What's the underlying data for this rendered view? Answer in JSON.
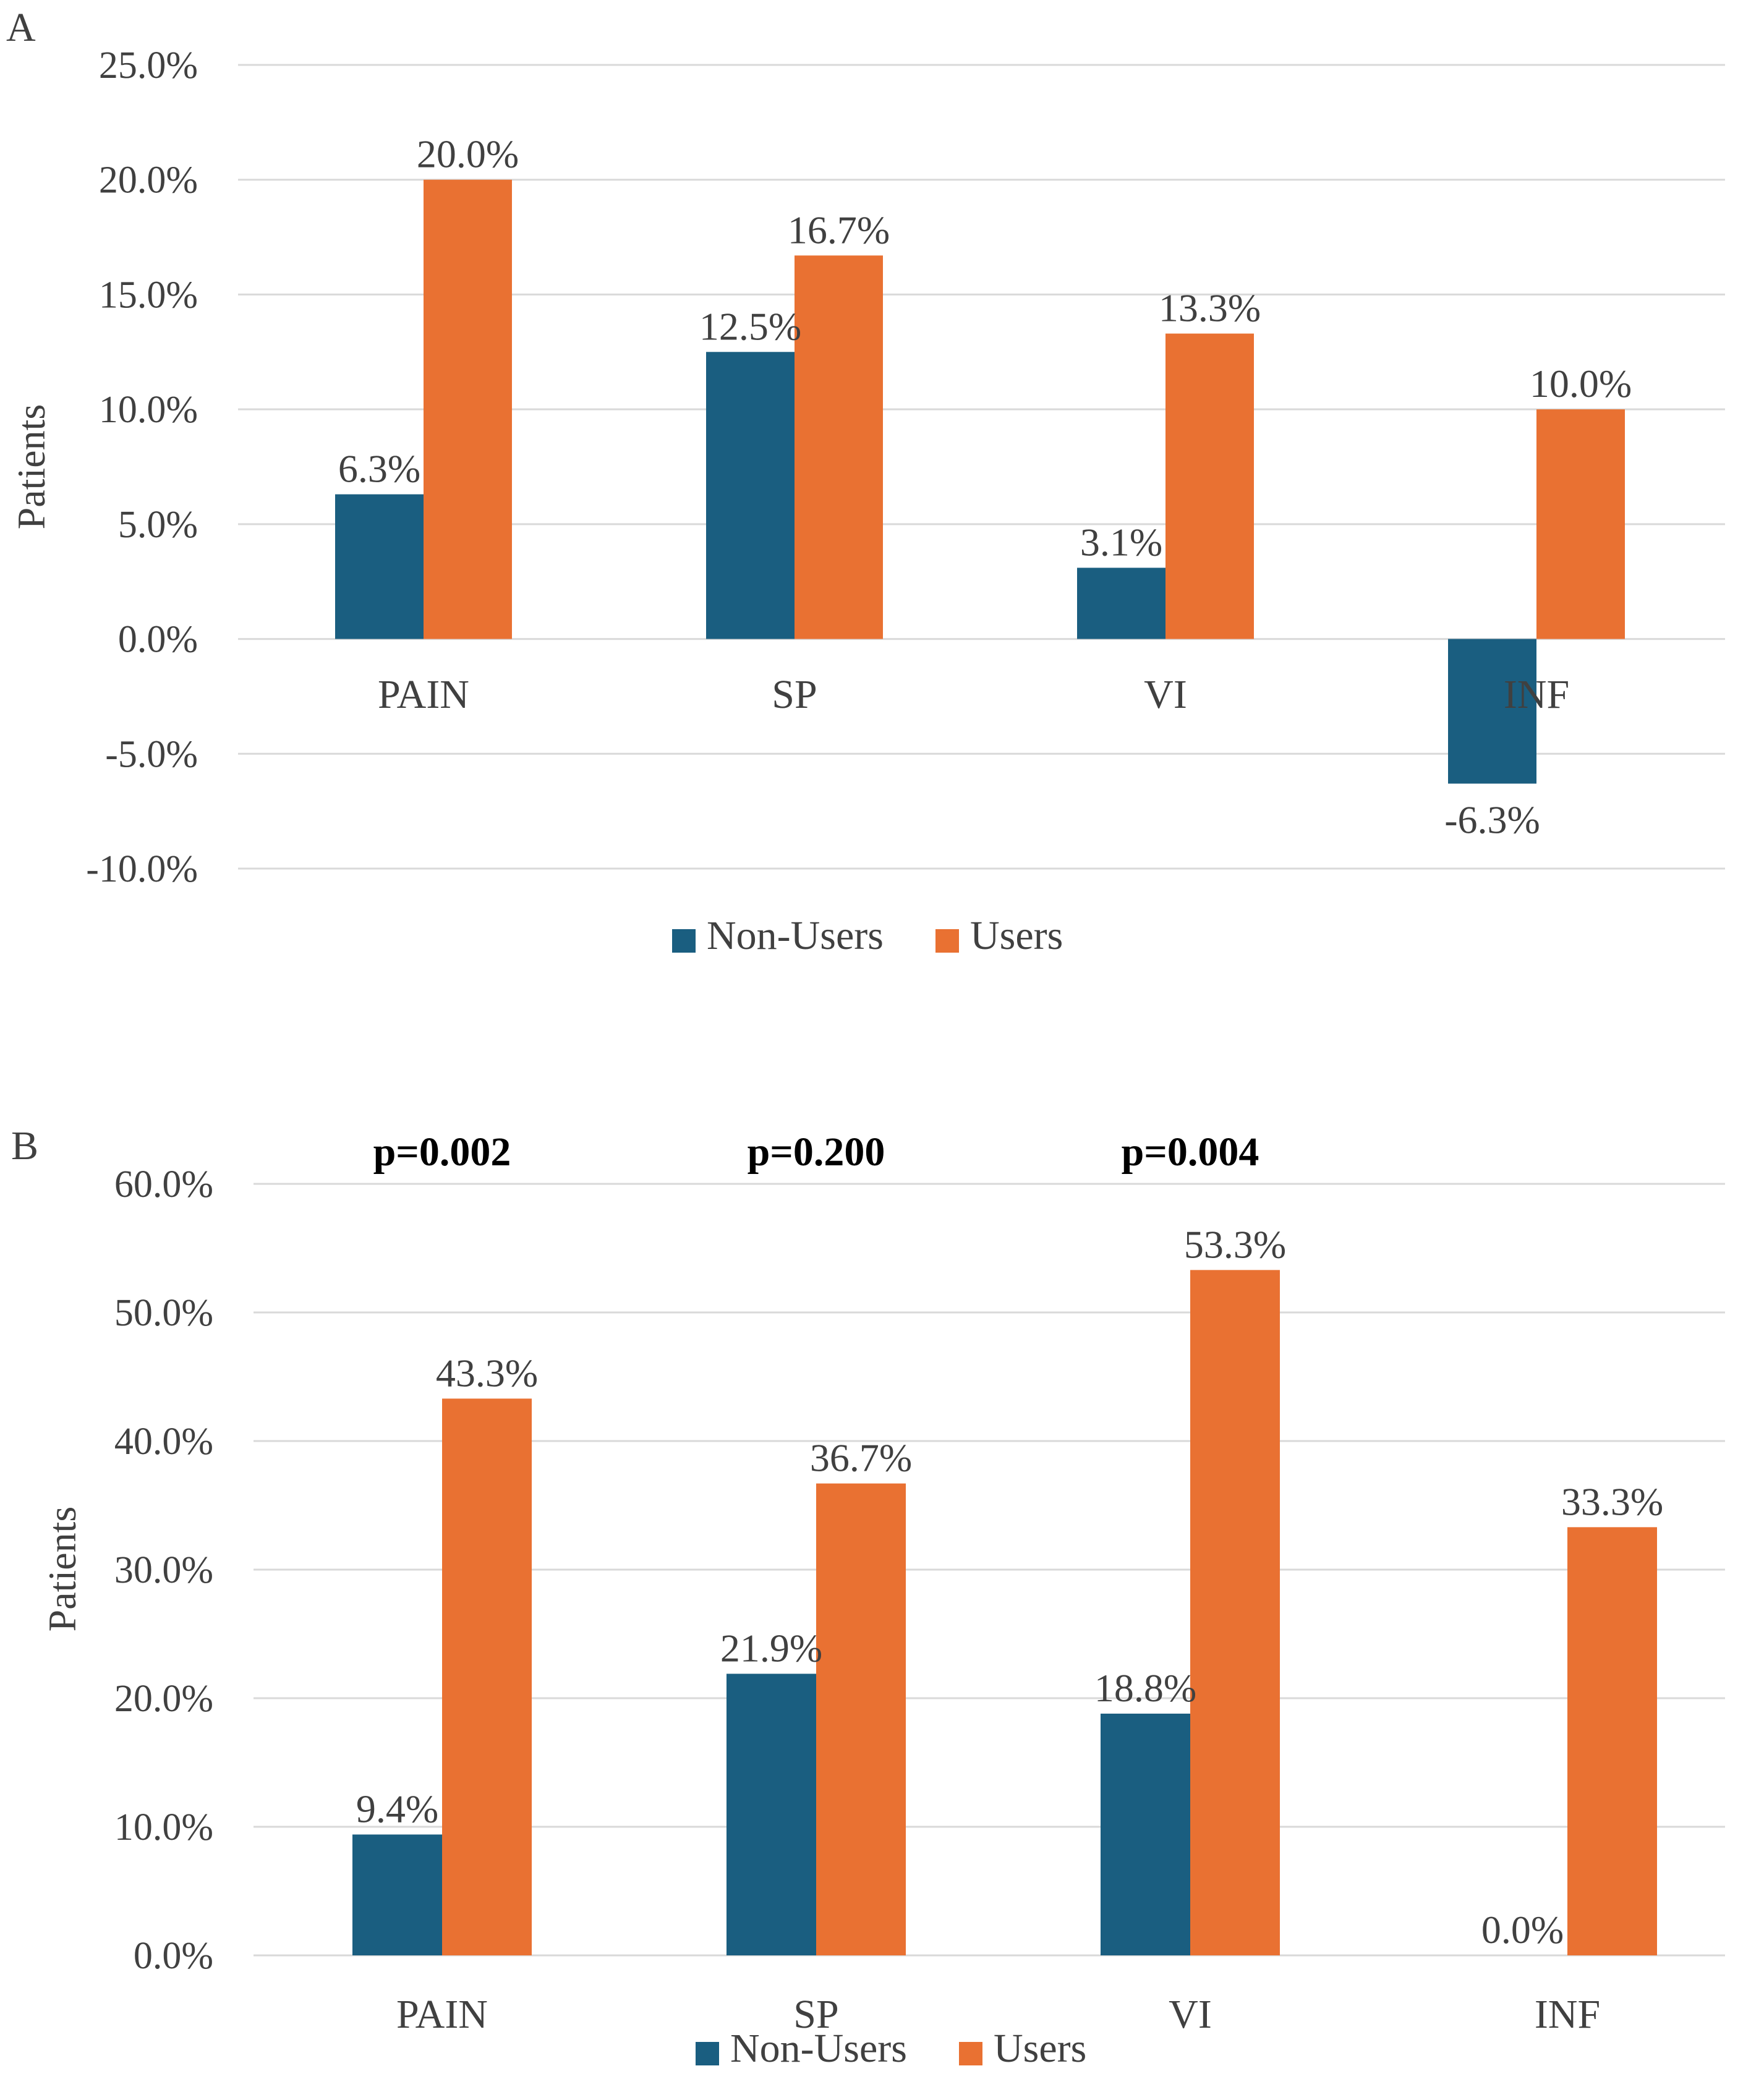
{
  "colors": {
    "non_users": "#1a5e80",
    "users": "#e97132",
    "grid": "#d9d9d9",
    "text": "#404040"
  },
  "chart_data": [
    {
      "panel": "A",
      "type": "bar",
      "categories": [
        "PAIN",
        "SP",
        "VI",
        "INF"
      ],
      "series": [
        {
          "name": "Non-Users",
          "values": [
            6.3,
            12.5,
            3.1,
            -6.3
          ],
          "labels": [
            "6.3%",
            "12.5%",
            "3.1%",
            "-6.3%"
          ]
        },
        {
          "name": "Users",
          "values": [
            20.0,
            16.7,
            13.3,
            10.0
          ],
          "labels": [
            "20.0%",
            "16.7%",
            "13.3%",
            "10.0%"
          ]
        }
      ],
      "yticks": [
        25,
        20,
        15,
        10,
        5,
        0,
        -5,
        -10
      ],
      "ytick_labels": [
        "25.0%",
        "20.0%",
        "15.0%",
        "10.0%",
        "5.0%",
        "0.0%",
        "-5.0%",
        "-10.0%"
      ],
      "ylim": [
        -10,
        25
      ],
      "ylabel": "Patients",
      "xlabel": "",
      "legend": "bottom",
      "p_values": []
    },
    {
      "panel": "B",
      "type": "bar",
      "categories": [
        "PAIN",
        "SP",
        "VI",
        "INF"
      ],
      "series": [
        {
          "name": "Non-Users",
          "values": [
            9.4,
            21.9,
            18.8,
            0.0
          ],
          "labels": [
            "9.4%",
            "21.9%",
            "18.8%",
            "0.0%"
          ]
        },
        {
          "name": "Users",
          "values": [
            43.3,
            36.7,
            53.3,
            33.3
          ],
          "labels": [
            "43.3%",
            "36.7%",
            "53.3%",
            "33.3%"
          ]
        }
      ],
      "yticks": [
        60,
        50,
        40,
        30,
        20,
        10,
        0
      ],
      "ytick_labels": [
        "60.0%",
        "50.0%",
        "40.0%",
        "30.0%",
        "20.0%",
        "10.0%",
        "0.0%"
      ],
      "ylim": [
        0,
        60
      ],
      "ylabel": "Patients",
      "xlabel": "",
      "legend": "bottom",
      "p_values": [
        "p=0.002",
        "p=0.200",
        "p=0.004",
        ""
      ]
    }
  ]
}
